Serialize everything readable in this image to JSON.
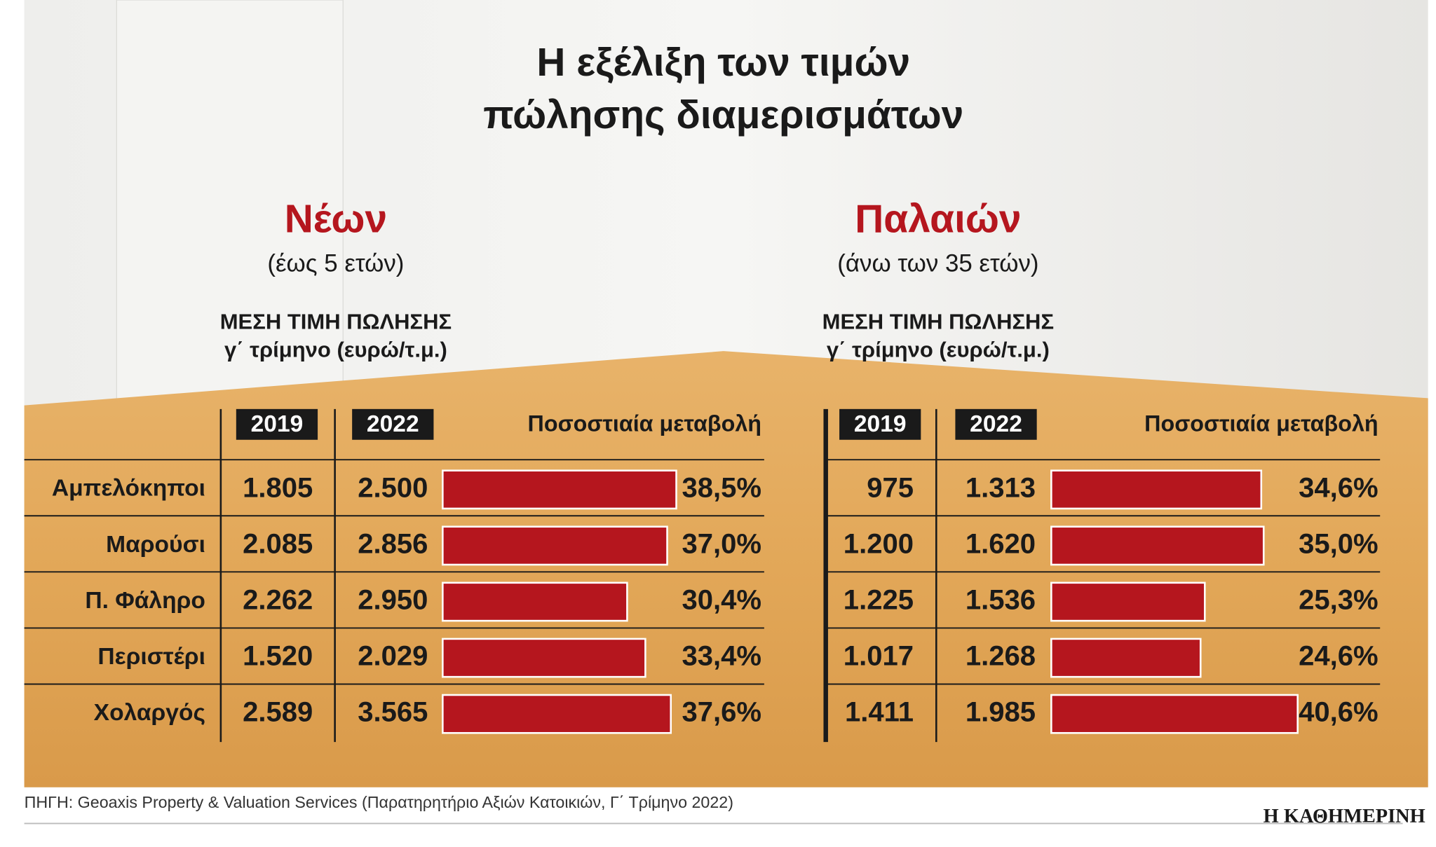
{
  "title_lines": [
    "Η εξέλιξη των τιμών",
    "πώλησης διαμερισμάτων"
  ],
  "areas": [
    "Αμπελόκηποι",
    "Μαρούσι",
    "Π. Φάληρο",
    "Περιστέρι",
    "Χολαργός"
  ],
  "panels": [
    {
      "heading": "Νέων",
      "subheading": "(έως 5 ετών)",
      "measure_lines": [
        "ΜΕΣΗ ΤΙΜΗ ΠΩΛΗΣΗΣ",
        "γ΄ τρίμηνο (ευρώ/τ.μ.)"
      ],
      "columns": [
        "2019",
        "2022",
        "Ποσοστιαία μεταβολή"
      ],
      "price_2019": [
        "1.805",
        "2.085",
        "2.262",
        "1.520",
        "2.589"
      ],
      "price_2022": [
        "2.500",
        "2.856",
        "2.950",
        "2.029",
        "3.565"
      ],
      "change": [
        38.5,
        37.0,
        30.4,
        33.4,
        37.6
      ],
      "change_labels": [
        "38,5%",
        "37,0%",
        "30,4%",
        "33,4%",
        "37,6%"
      ],
      "color": "#b5161e"
    },
    {
      "heading": "Παλαιών",
      "subheading": "(άνω των 35 ετών)",
      "measure_lines": [
        "ΜΕΣΗ ΤΙΜΗ ΠΩΛΗΣΗΣ",
        "γ΄ τρίμηνο (ευρώ/τ.μ.)"
      ],
      "columns": [
        "2019",
        "2022",
        "Ποσοστιαία μεταβολή"
      ],
      "price_2019": [
        "975",
        "1.200",
        "1.225",
        "1.017",
        "1.411"
      ],
      "price_2022": [
        "1.313",
        "1.620",
        "1.536",
        "1.268",
        "1.985"
      ],
      "change": [
        34.6,
        35.0,
        25.3,
        24.6,
        40.6
      ],
      "change_labels": [
        "34,6%",
        "35,0%",
        "25,3%",
        "24,6%",
        "40,6%"
      ],
      "color": "#b5161e"
    }
  ],
  "source": "ΠΗΓΗ: Geoaxis Property & Valuation Services (Παρατηρητήριο Αξιών Κατοικιών, Γ΄ Τρίμηνο 2022)",
  "brand": "Η ΚΑΘΗΜΕΡΙΝΗ"
}
